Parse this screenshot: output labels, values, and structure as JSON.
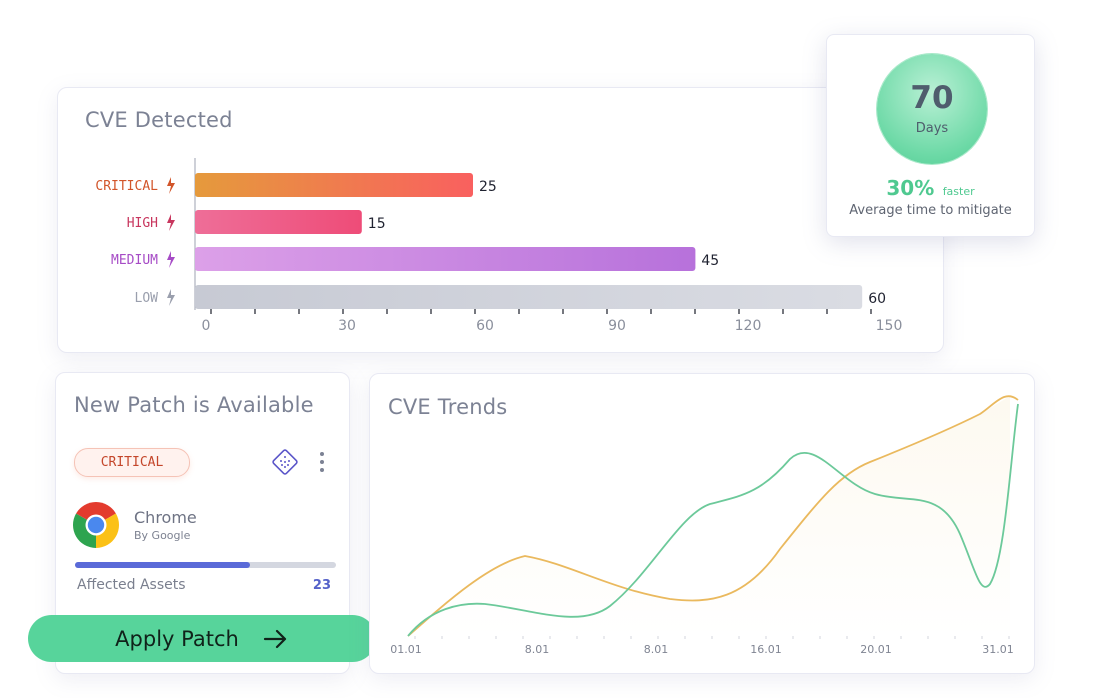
{
  "cve_detected": {
    "title": "CVE Detected",
    "axis_ticks": [
      "0",
      "30",
      "60",
      "90",
      "120",
      "150"
    ],
    "bars": [
      {
        "label": "CRITICAL",
        "value": 25,
        "display_value": "25",
        "label_color": "#d2552a",
        "color_start": "#e59a3c",
        "color_end": "#f9605f"
      },
      {
        "label": "HIGH",
        "value": 15,
        "display_value": "15",
        "label_color": "#c8365e",
        "color_start": "#ee6e98",
        "color_end": "#ee4c78"
      },
      {
        "label": "MEDIUM",
        "value": 45,
        "display_value": "45",
        "label_color": "#a64bc6",
        "color_start": "#dca0e8",
        "color_end": "#b771db"
      },
      {
        "label": "LOW",
        "value": 60,
        "display_value": "60",
        "label_color": "#9a9fad",
        "color_start": "#c7cad4",
        "color_end": "#dadce3"
      }
    ]
  },
  "mitigation": {
    "days_value": "70",
    "days_label": "Days",
    "percent": "30%",
    "percent_suffix": "faster",
    "caption": "Average time to mitigate"
  },
  "patch": {
    "title": "New Patch is Available",
    "severity_badge": "CRITICAL",
    "app_name": "Chrome",
    "app_vendor": "By Google",
    "assets_label": "Affected Assets",
    "assets_count": "23",
    "progress": 0.67,
    "button_label": "Apply Patch"
  },
  "trends": {
    "title": "CVE Trends",
    "x_labels": [
      "01.01",
      "8.01",
      "8.01",
      "16.01",
      "20.01",
      "31.01"
    ]
  },
  "colors": {
    "accent_green": "#57d49b",
    "trend_green": "#6cc99a",
    "trend_orange": "#eab95e",
    "progress_blue": "#5a6ad8"
  }
}
